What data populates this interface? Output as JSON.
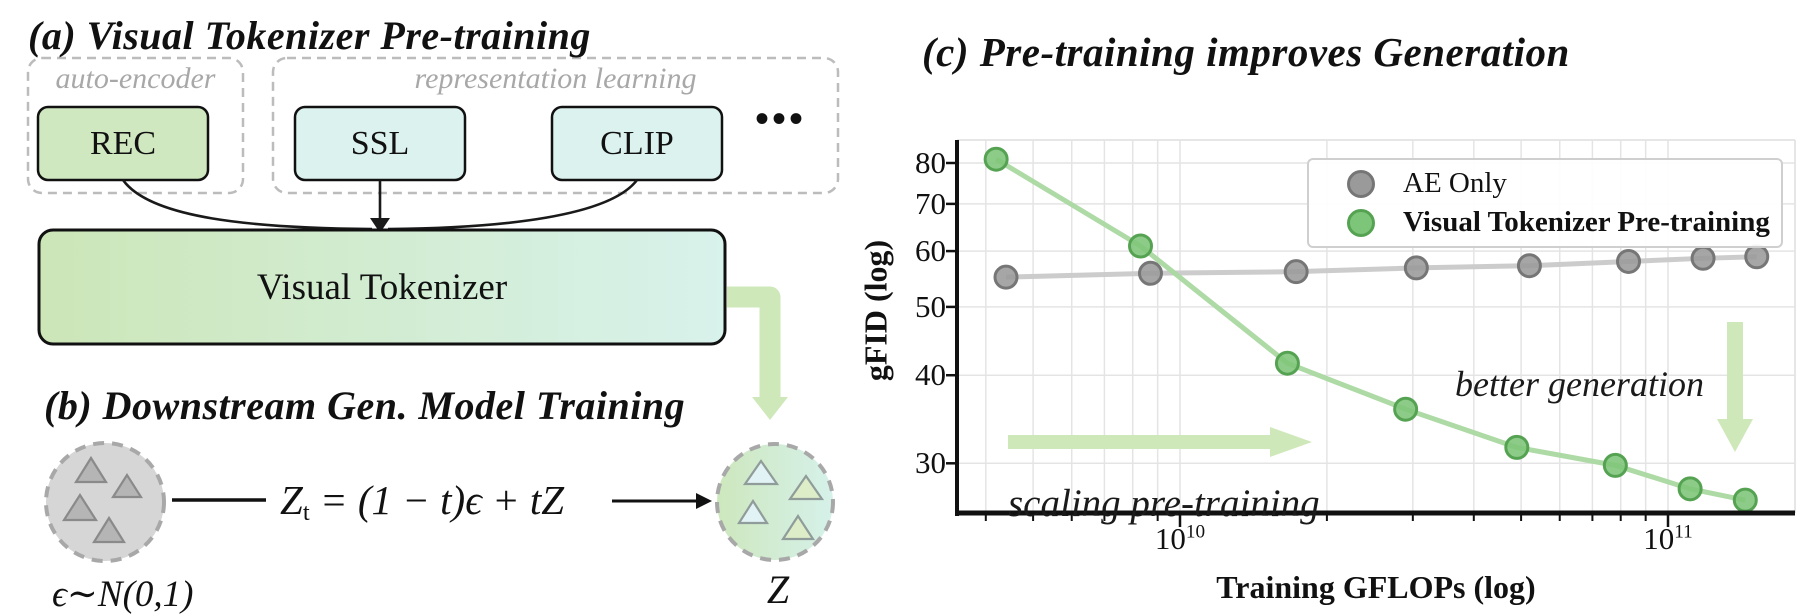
{
  "panel_a": {
    "title": "(a) Visual Tokenizer Pre-training",
    "groups": [
      {
        "label": "auto-encoder",
        "boxes": [
          "REC"
        ]
      },
      {
        "label": "representation learning",
        "boxes": [
          "SSL",
          "CLIP"
        ]
      }
    ],
    "ellipsis": "•••",
    "tokenizer_label": "Visual Tokenizer"
  },
  "panel_b": {
    "title": "(b) Downstream Gen. Model Training",
    "noise_label": "ϵ∼N(0,1)",
    "equation": {
      "base": "Z",
      "sub": "t",
      "rest": " = (1 − t)ϵ + tZ"
    },
    "latent_label": "Z"
  },
  "panel_c": {
    "title": "(c) Pre-training improves Generation",
    "chart_data": {
      "type": "line",
      "xlabel": "Training GFLOPs (log)",
      "ylabel": "gFID (log)",
      "x_scale": "log",
      "y_scale": "log",
      "xlim": [
        3500000000.0,
        180000000000.0
      ],
      "ylim": [
        25.5,
        86
      ],
      "x_ticks": [
        {
          "label": "10^10",
          "value": 10000000000.0
        },
        {
          "label": "10^11",
          "value": 100000000000.0
        }
      ],
      "y_ticks": [
        80,
        70,
        60,
        50,
        40,
        30
      ],
      "grid": true,
      "legend_position": "upper right",
      "series": [
        {
          "name": "AE Only",
          "emphasized": false,
          "line_color": "#c9c9c9",
          "marker_color": "#9a9a9a",
          "marker_edge_color": "#767676",
          "x": [
            4400000000.0,
            8700000000.0,
            17300000000.0,
            30500000000.0,
            52000000000.0,
            83000000000.0,
            118000000000.0,
            152000000000.0
          ],
          "y": [
            55.1,
            55.8,
            56.1,
            56.8,
            57.2,
            58.0,
            58.6,
            58.9
          ]
        },
        {
          "name": "Visual Tokenizer Pre-training",
          "emphasized": true,
          "line_color": "#a9d8a0",
          "marker_color": "#7dc578",
          "marker_edge_color": "#55a352",
          "x": [
            4200000000.0,
            8300000000.0,
            16600000000.0,
            29000000000.0,
            49000000000.0,
            78000000000.0,
            111000000000.0,
            144000000000.0
          ],
          "y": [
            81,
            61,
            41.6,
            35.8,
            31.6,
            29.8,
            27.6,
            26.6
          ]
        }
      ],
      "annotations": [
        {
          "text": "scaling pre-training",
          "arrow_direction": "right"
        },
        {
          "text": "better generation",
          "arrow_direction": "down"
        }
      ]
    }
  },
  "colors": {
    "accent_green": "#cfe8ba",
    "rec_fill": "#cfe8c0",
    "repr_fill": "#dcf2ee",
    "tokenizer_gradient": [
      "#cce6b8",
      "#d8f2ec"
    ],
    "noise_fill": "#d6d6d6",
    "noise_triangle_fill": "#b5b5b5",
    "latent_gradient": [
      "#cde7bd",
      "#d6f1ea"
    ],
    "grid": "#e4e4e4",
    "spine": "#111111",
    "dashed_border": "#bcbcbc"
  }
}
